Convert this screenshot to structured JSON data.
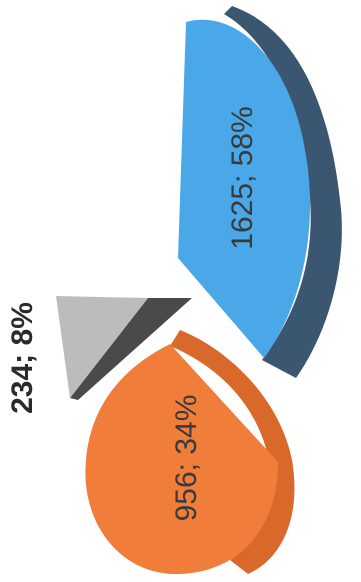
{
  "chart_data": {
    "type": "pie",
    "style": "3d-exploded",
    "orientation": "rotated-90-ccw",
    "categories": [
      "",
      "",
      ""
    ],
    "values": [
      1625,
      956,
      234
    ],
    "percent_labels": [
      "58%",
      "34%",
      "8%"
    ],
    "data_labels": [
      "1625; 58%",
      "956; 34%",
      "234; 8%"
    ],
    "colors": {
      "slice_1_top": "#4aa7e8",
      "slice_1_side": "#3b5670",
      "slice_2_top": "#f07d3a",
      "slice_2_side": "#d9692a",
      "slice_3_top": "#bcbcbc",
      "slice_3_side": "#4a4a4a"
    },
    "title": "",
    "legend": "none"
  }
}
